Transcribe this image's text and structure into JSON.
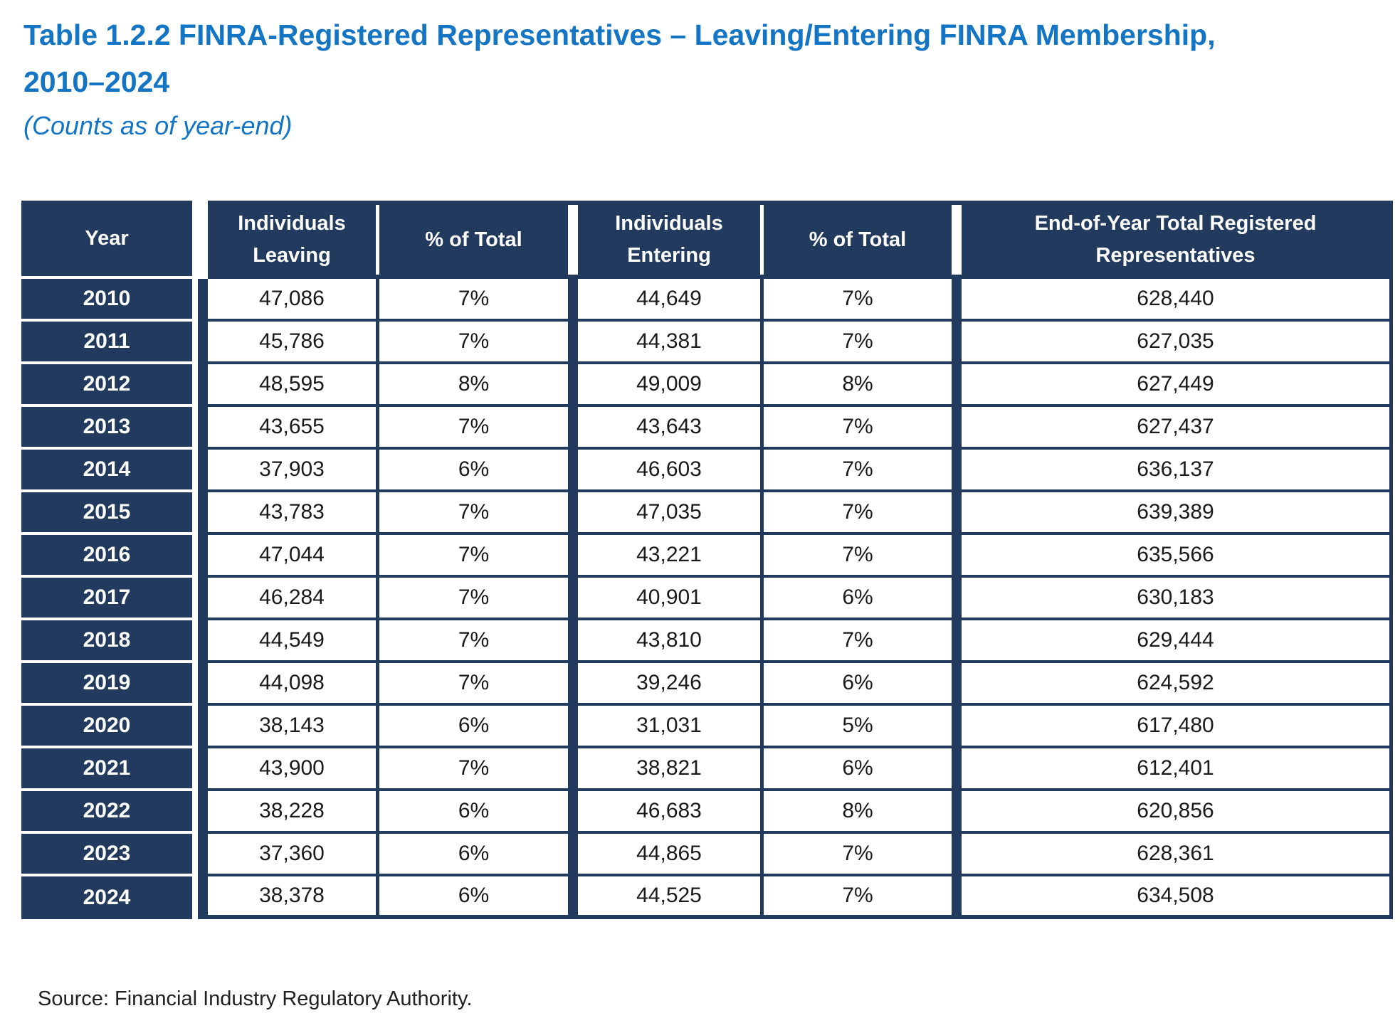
{
  "title": {
    "line1": "Table 1.2.2 FINRA-Registered Representatives – Leaving/Entering FINRA Membership,",
    "line2": "2010–2024",
    "subtitle": "(Counts as of year-end)"
  },
  "table": {
    "headers": [
      {
        "lines": [
          "Year"
        ]
      },
      {
        "lines": [
          "Individuals",
          "Leaving"
        ]
      },
      {
        "lines": [
          "% of Total"
        ]
      },
      {
        "lines": [
          "Individuals",
          "Entering"
        ]
      },
      {
        "lines": [
          "% of Total"
        ]
      },
      {
        "lines": [
          "End-of-Year Total Registered",
          "Representatives"
        ]
      }
    ],
    "rows": [
      [
        "2010",
        "47,086",
        "7%",
        "44,649",
        "7%",
        "628,440"
      ],
      [
        "2011",
        "45,786",
        "7%",
        "44,381",
        "7%",
        "627,035"
      ],
      [
        "2012",
        "48,595",
        "8%",
        "49,009",
        "8%",
        "627,449"
      ],
      [
        "2013",
        "43,655",
        "7%",
        "43,643",
        "7%",
        "627,437"
      ],
      [
        "2014",
        "37,903",
        "6%",
        "46,603",
        "7%",
        "636,137"
      ],
      [
        "2015",
        "43,783",
        "7%",
        "47,035",
        "7%",
        "639,389"
      ],
      [
        "2016",
        "47,044",
        "7%",
        "43,221",
        "7%",
        "635,566"
      ],
      [
        "2017",
        "46,284",
        "7%",
        "40,901",
        "6%",
        "630,183"
      ],
      [
        "2018",
        "44,549",
        "7%",
        "43,810",
        "7%",
        "629,444"
      ],
      [
        "2019",
        "44,098",
        "7%",
        "39,246",
        "6%",
        "624,592"
      ],
      [
        "2020",
        "38,143",
        "6%",
        "31,031",
        "5%",
        "617,480"
      ],
      [
        "2021",
        "43,900",
        "7%",
        "38,821",
        "6%",
        "612,401"
      ],
      [
        "2022",
        "38,228",
        "6%",
        "46,683",
        "8%",
        "620,856"
      ],
      [
        "2023",
        "37,360",
        "6%",
        "44,865",
        "7%",
        "628,361"
      ],
      [
        "2024",
        "38,378",
        "6%",
        "44,525",
        "7%",
        "634,508"
      ]
    ]
  },
  "source": "Source: Financial Industry Regulatory Authority.",
  "colors": {
    "navy": "#223A5E",
    "title_blue": "#1375C4",
    "body_text": "#1A1A1A"
  }
}
